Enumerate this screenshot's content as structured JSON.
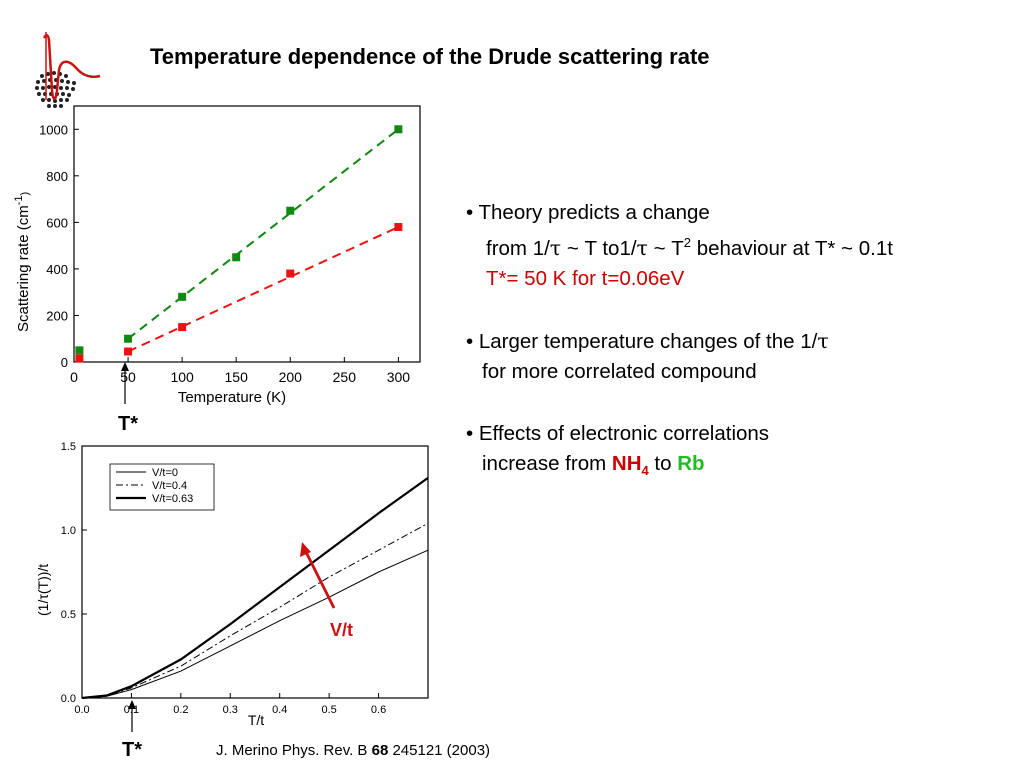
{
  "slide": {
    "title": "Temperature dependence of the Drude scattering rate",
    "citation": {
      "prefix": "J. Merino Phys. Rev. B ",
      "volume": "68",
      "suffix": " 245121 (2003)"
    },
    "tstar_label": "T*",
    "bullets": {
      "b1_line1": "• Theory predicts a change",
      "b1_line2_a": "from 1/",
      "b1_line2_tau1": "τ",
      "b1_line2_b": " ~ T to1/",
      "b1_line2_tau2": "τ",
      "b1_line2_c": " ~ T",
      "b1_line2_sup": "2",
      "b1_line2_d": " behaviour at T* ~ 0.1t",
      "b1_line3": "T*= 50 K for t=0.06eV",
      "b2_line1_a": "• Larger temperature changes of the 1/",
      "b2_line1_tau": "τ",
      "b2_line2": "for more correlated compound",
      "b3_line1": "• Effects of electronic correlations",
      "b3_line2_a": "increase from ",
      "b3_nh": "NH",
      "b3_sub": "4",
      "b3_to": " to ",
      "b3_rb": "Rb"
    },
    "colors": {
      "red": "#cc0000",
      "green": "#22bb22",
      "series_green": "#118811",
      "series_red": "#ee1111",
      "arrow": "#cc1111"
    }
  },
  "chart_data": [
    {
      "type": "scatter",
      "xlabel": "Temperature (K)",
      "ylabel_main": "Scattering rate (cm",
      "ylabel_sup": "-1",
      "ylabel_close": ")",
      "xlim": [
        0,
        320
      ],
      "ylim": [
        0,
        1100
      ],
      "xticks": [
        0,
        50,
        100,
        150,
        200,
        250,
        300
      ],
      "yticks": [
        0,
        200,
        400,
        600,
        800,
        1000
      ],
      "grid": false,
      "series": [
        {
          "color": "#118811",
          "points": [
            [
              5,
              50
            ],
            [
              50,
              100
            ],
            [
              100,
              280
            ],
            [
              150,
              450
            ],
            [
              200,
              650
            ],
            [
              300,
              1000
            ]
          ],
          "fit": [
            [
              50,
              100
            ],
            [
              300,
              1000
            ]
          ]
        },
        {
          "color": "#ee1111",
          "points": [
            [
              5,
              15
            ],
            [
              50,
              45
            ],
            [
              100,
              150
            ],
            [
              200,
              380
            ],
            [
              300,
              580
            ]
          ],
          "fit": [
            [
              50,
              45
            ],
            [
              300,
              580
            ]
          ]
        }
      ]
    },
    {
      "type": "line",
      "xlabel": "T/t",
      "ylabel": "(1/τ(T))/t",
      "xlim": [
        0,
        0.7
      ],
      "ylim": [
        0,
        1.5
      ],
      "xticks": [
        "0.0",
        "0.1",
        "0.2",
        "0.3",
        "0.4",
        "0.5",
        "0.6"
      ],
      "yticks": [
        "0.0",
        "0.5",
        "1.0",
        "1.5"
      ],
      "grid": false,
      "legend_placement": "top-left",
      "arrow_label": "V/t",
      "series": [
        {
          "name": "V/t=0",
          "style": "thin",
          "points": [
            [
              0,
              0
            ],
            [
              0.05,
              0.01
            ],
            [
              0.1,
              0.05
            ],
            [
              0.2,
              0.16
            ],
            [
              0.3,
              0.31
            ],
            [
              0.4,
              0.46
            ],
            [
              0.5,
              0.6
            ],
            [
              0.6,
              0.75
            ],
            [
              0.7,
              0.88
            ]
          ]
        },
        {
          "name": "V/t=0.4",
          "style": "dashdot",
          "points": [
            [
              0,
              0
            ],
            [
              0.05,
              0.012
            ],
            [
              0.1,
              0.06
            ],
            [
              0.2,
              0.19
            ],
            [
              0.3,
              0.37
            ],
            [
              0.4,
              0.54
            ],
            [
              0.5,
              0.72
            ],
            [
              0.6,
              0.88
            ],
            [
              0.7,
              1.04
            ]
          ]
        },
        {
          "name": "V/t=0.63",
          "style": "thick",
          "points": [
            [
              0,
              0
            ],
            [
              0.05,
              0.015
            ],
            [
              0.1,
              0.07
            ],
            [
              0.2,
              0.23
            ],
            [
              0.3,
              0.44
            ],
            [
              0.4,
              0.66
            ],
            [
              0.5,
              0.88
            ],
            [
              0.6,
              1.1
            ],
            [
              0.7,
              1.31
            ]
          ]
        }
      ]
    }
  ]
}
